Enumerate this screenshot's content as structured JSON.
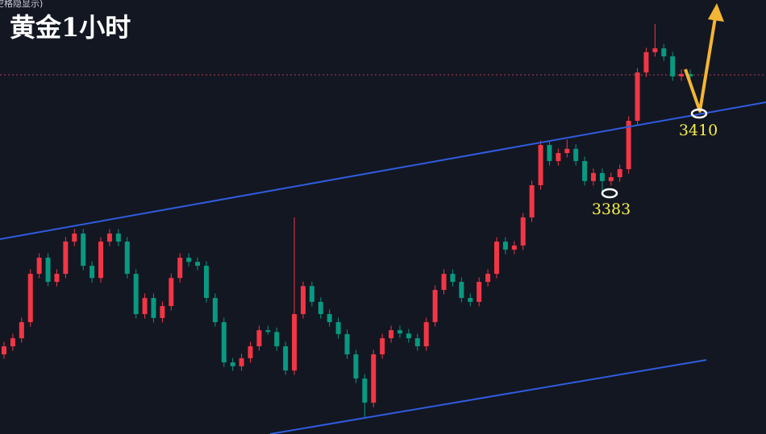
{
  "header": {
    "title": "黄金1小时",
    "note": "空格隐显示)"
  },
  "chart_data": {
    "type": "candlestick",
    "open": [
      3329.0,
      3331.7,
      3334.4,
      3339.8,
      3356.0,
      3361.4,
      3353.3,
      3356.0,
      3366.8,
      3369.5,
      3358.7,
      3354.6,
      3366.8,
      3369.5,
      3366.8,
      3356.0,
      3342.5,
      3347.9,
      3341.2,
      3345.2,
      3354.6,
      3361.4,
      3360.0,
      3358.7,
      3347.9,
      3339.8,
      3326.3,
      3325.0,
      3327.7,
      3331.7,
      3337.1,
      3336.5,
      3331.7,
      3323.6,
      3342.5,
      3351.9,
      3346.6,
      3342.5,
      3339.8,
      3335.8,
      3329.0,
      3320.9,
      3312.8,
      3329.0,
      3334.4,
      3337.1,
      3336.0,
      3334.4,
      3331.7,
      3339.8,
      3350.6,
      3356.0,
      3353.3,
      3347.9,
      3346.6,
      3353.3,
      3356.0,
      3366.8,
      3364.1,
      3365.5,
      3374.9,
      3385.7,
      3399.2,
      3393.8,
      3396.5,
      3397.9,
      3393.8,
      3387.1,
      3389.8,
      3387.1,
      3388.4,
      3391.1,
      3407.3,
      3423.5,
      3430.3,
      3431.6,
      3428.9,
      3422.2,
      3423.0
    ],
    "high": [
      3333.2,
      3335.9,
      3341.3,
      3357.5,
      3362.9,
      3362.9,
      3357.5,
      3368.3,
      3371.0,
      3371.0,
      3360.2,
      3368.3,
      3371.0,
      3371.0,
      3368.3,
      3357.5,
      3349.4,
      3349.4,
      3346.7,
      3356.1,
      3362.9,
      3362.9,
      3361.5,
      3360.2,
      3349.4,
      3341.3,
      3327.8,
      3329.2,
      3333.2,
      3338.6,
      3338.6,
      3338.0,
      3333.2,
      3374.9,
      3353.4,
      3353.4,
      3348.1,
      3344.0,
      3341.3,
      3337.3,
      3330.5,
      3322.4,
      3330.5,
      3335.9,
      3338.6,
      3338.6,
      3337.5,
      3335.9,
      3341.3,
      3352.1,
      3357.5,
      3357.5,
      3354.8,
      3349.4,
      3354.8,
      3357.5,
      3368.3,
      3368.3,
      3367.0,
      3376.4,
      3387.2,
      3400.7,
      3400.7,
      3398.0,
      3401.0,
      3399.4,
      3395.3,
      3391.3,
      3391.3,
      3389.9,
      3392.6,
      3408.8,
      3425.0,
      3431.8,
      3439.7,
      3433.1,
      3430.4,
      3424.5,
      3424.5
    ],
    "low": [
      3327.5,
      3330.2,
      3332.9,
      3338.3,
      3354.5,
      3351.8,
      3351.8,
      3354.5,
      3365.3,
      3357.2,
      3353.1,
      3353.1,
      3365.3,
      3365.3,
      3354.5,
      3341.0,
      3341.0,
      3339.7,
      3339.7,
      3343.7,
      3353.1,
      3358.5,
      3357.2,
      3346.4,
      3338.3,
      3324.8,
      3323.5,
      3323.5,
      3326.2,
      3330.2,
      3335.6,
      3330.2,
      3322.1,
      3322.1,
      3341.0,
      3345.1,
      3341.0,
      3338.3,
      3334.3,
      3327.5,
      3319.4,
      3307.4,
      3311.3,
      3327.5,
      3332.9,
      3334.5,
      3332.9,
      3330.2,
      3330.2,
      3338.3,
      3349.1,
      3351.8,
      3346.4,
      3345.1,
      3345.1,
      3351.8,
      3354.5,
      3362.6,
      3362.6,
      3364.0,
      3373.4,
      3384.2,
      3392.3,
      3392.3,
      3395.0,
      3392.3,
      3385.6,
      3385.6,
      3383.0,
      3385.6,
      3386.9,
      3389.6,
      3405.8,
      3422.0,
      3428.8,
      3427.4,
      3420.7,
      3420.7,
      3419.0
    ],
    "close": [
      3331.7,
      3334.4,
      3339.8,
      3356.0,
      3361.4,
      3353.3,
      3356.0,
      3366.8,
      3369.5,
      3358.7,
      3354.6,
      3366.8,
      3369.5,
      3366.8,
      3356.0,
      3342.5,
      3347.9,
      3341.2,
      3345.2,
      3354.6,
      3361.4,
      3360.0,
      3358.7,
      3347.9,
      3339.8,
      3326.3,
      3325.0,
      3327.7,
      3331.7,
      3337.1,
      3336.5,
      3331.7,
      3323.6,
      3342.5,
      3351.9,
      3346.6,
      3342.5,
      3339.8,
      3335.8,
      3329.0,
      3320.9,
      3312.8,
      3329.0,
      3334.4,
      3337.1,
      3336.0,
      3334.4,
      3331.7,
      3339.8,
      3350.6,
      3356.0,
      3353.3,
      3347.9,
      3346.6,
      3353.3,
      3356.0,
      3366.8,
      3364.1,
      3365.5,
      3374.9,
      3385.7,
      3399.2,
      3393.8,
      3396.5,
      3397.9,
      3393.8,
      3387.1,
      3389.8,
      3387.1,
      3388.4,
      3391.1,
      3407.3,
      3423.5,
      3430.3,
      3431.6,
      3428.9,
      3422.2,
      3423.0,
      3422.2
    ],
    "ylim": [
      3302.3,
      3447.8
    ],
    "up_color": "#f23645",
    "down_color": "#089981",
    "annotations": [
      "3383",
      "3410"
    ]
  }
}
